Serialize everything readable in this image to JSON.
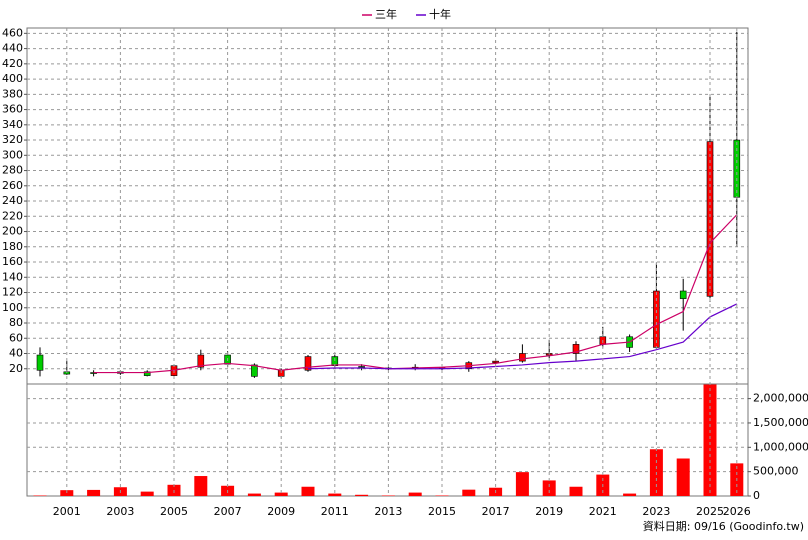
{
  "chart_data": [
    {
      "type": "candlestick",
      "open": [
        38,
        16,
        15,
        14,
        16,
        11,
        22,
        38,
        25,
        10,
        18,
        36,
        23,
        20,
        20,
        21,
        20,
        28,
        30,
        38,
        40,
        52,
        62,
        48,
        122,
        115,
        320
      ],
      "high": [
        48,
        30,
        18,
        18,
        18,
        25,
        45,
        43,
        27,
        20,
        38,
        38,
        26,
        22,
        26,
        25,
        30,
        33,
        52,
        58,
        56,
        75,
        65,
        158,
        138,
        380,
        462
      ],
      "low": [
        10,
        12,
        10,
        12,
        10,
        8,
        18,
        22,
        8,
        8,
        16,
        22,
        18,
        18,
        18,
        18,
        16,
        26,
        28,
        34,
        30,
        48,
        42,
        46,
        70,
        108,
        180
      ],
      "close": [
        18,
        13,
        14,
        16,
        11,
        24,
        38,
        26,
        10,
        18,
        36,
        24,
        22,
        21,
        22,
        22,
        28,
        30,
        40,
        40,
        52,
        62,
        48,
        122,
        112,
        318,
        245
      ],
      "up_color": "#ff0000",
      "down_color": "#00cc00",
      "series": [
        {
          "name": "三年",
          "color": "#cc0066",
          "values": [
            null,
            null,
            15,
            15,
            15,
            18,
            24,
            27,
            24,
            18,
            22,
            25,
            25,
            20,
            21,
            22,
            24,
            27,
            33,
            37,
            42,
            52,
            55,
            78,
            95,
            185,
            222
          ]
        },
        {
          "name": "十年",
          "color": "#6600cc",
          "values": [
            null,
            null,
            null,
            null,
            null,
            null,
            null,
            null,
            null,
            null,
            20,
            21,
            21,
            20,
            20,
            20,
            21,
            23,
            25,
            28,
            30,
            33,
            36,
            45,
            55,
            88,
            105
          ]
        }
      ],
      "ylim": [
        0,
        467
      ],
      "yticks": [
        20,
        40,
        60,
        80,
        100,
        120,
        140,
        160,
        180,
        200,
        220,
        240,
        260,
        280,
        300,
        320,
        340,
        360,
        380,
        400,
        420,
        440,
        460
      ],
      "grid": true
    },
    {
      "type": "bar",
      "categories": [
        null,
        "2001",
        null,
        "2003",
        null,
        "2005",
        null,
        "2007",
        null,
        "2009",
        null,
        "2011",
        null,
        "2013",
        null,
        "2015",
        null,
        "2017",
        null,
        "2019",
        null,
        "2021",
        null,
        "2023",
        null,
        "2025",
        "2026"
      ],
      "values": [
        10000,
        120000,
        125000,
        180000,
        90000,
        230000,
        410000,
        210000,
        50000,
        70000,
        190000,
        50000,
        25000,
        10000,
        70000,
        10000,
        130000,
        170000,
        490000,
        320000,
        190000,
        440000,
        50000,
        960000,
        770000,
        2290000,
        670000
      ],
      "color": "#ff0000",
      "ylim": [
        0,
        2300000
      ],
      "yticks": [
        0,
        {
          "value": 500000,
          "label": "500,000"
        },
        {
          "value": 1000000,
          "label": "1,000,000"
        },
        {
          "value": 1500000,
          "label": "1,500,000"
        },
        {
          "value": 2000000,
          "label": "2,000,000"
        }
      ],
      "grid": true,
      "source": "資料日期: 09/16  (Goodinfo.tw)"
    }
  ]
}
